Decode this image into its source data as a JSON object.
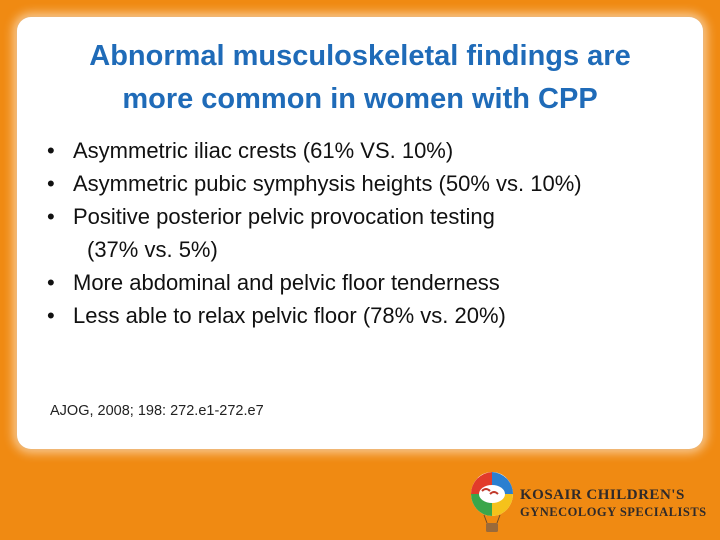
{
  "slide": {
    "title_line1": "Abnormal musculoskeletal findings are",
    "title_line2": "more common in women with CPP",
    "bullets": [
      {
        "text": "Asymmetric iliac crests (61% VS. 10%)"
      },
      {
        "text": "Asymmetric pubic symphysis heights (50% vs. 10%)"
      },
      {
        "text": "Positive posterior pelvic provocation testing",
        "continuation": "(37% vs. 5%)"
      },
      {
        "text": "More abdominal and pelvic floor tenderness"
      },
      {
        "text": "Less able to relax pelvic floor (78% vs. 20%)"
      }
    ],
    "bullet_glyph": "•",
    "citation": "AJOG, 2008; 198: 272.e1-272.e7"
  },
  "logo": {
    "line1": "KOSAIR CHILDREN'S",
    "line2": "GYNECOLOGY SPECIALISTS",
    "icon": "balloon-logo-icon"
  },
  "colors": {
    "background": "#f08a12",
    "title": "#1f6bb8",
    "card": "#ffffff"
  }
}
